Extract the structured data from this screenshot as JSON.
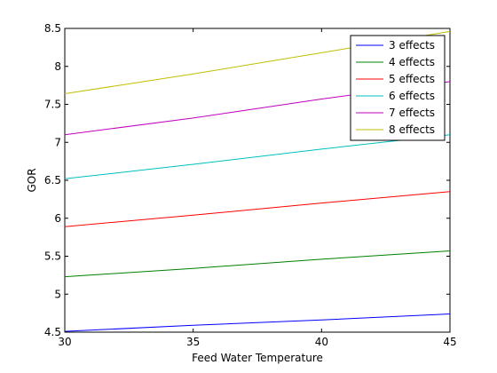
{
  "chart_data": {
    "type": "line",
    "title": "",
    "xlabel": "Feed Water Temperature",
    "ylabel": "GOR",
    "xlim": [
      30,
      45
    ],
    "ylim": [
      4.5,
      8.5
    ],
    "xticks": [
      30,
      35,
      40,
      45
    ],
    "yticks": [
      4.5,
      5,
      5.5,
      6,
      6.5,
      7,
      7.5,
      8,
      8.5
    ],
    "xtick_labels": [
      "30",
      "35",
      "40",
      "45"
    ],
    "ytick_labels": [
      "4.5",
      "5",
      "5.5",
      "6",
      "6.5",
      "7",
      "7.5",
      "8",
      "8.5"
    ],
    "grid": false,
    "legend_position": "top-right",
    "series": [
      {
        "name": "3 effects",
        "color": "#0000ff",
        "x": [
          30,
          35,
          40,
          45
        ],
        "y": [
          4.51,
          4.59,
          4.66,
          4.74
        ]
      },
      {
        "name": "4 effects",
        "color": "#008000",
        "x": [
          30,
          35,
          40,
          45
        ],
        "y": [
          5.23,
          5.34,
          5.46,
          5.57
        ]
      },
      {
        "name": "5 effects",
        "color": "#ff0000",
        "x": [
          30,
          35,
          40,
          45
        ],
        "y": [
          5.89,
          6.04,
          6.2,
          6.35
        ]
      },
      {
        "name": "6 effects",
        "color": "#00bfbf",
        "x": [
          30,
          35,
          40,
          45
        ],
        "y": [
          6.52,
          6.71,
          6.91,
          7.1
        ]
      },
      {
        "name": "7 effects",
        "color": "#bf00bf",
        "x": [
          30,
          35,
          40,
          45
        ],
        "y": [
          7.1,
          7.32,
          7.57,
          7.8
        ]
      },
      {
        "name": "8 effects",
        "color": "#bfbf00",
        "x": [
          30,
          35,
          40,
          45
        ],
        "y": [
          7.64,
          7.9,
          8.18,
          8.46
        ]
      }
    ]
  }
}
